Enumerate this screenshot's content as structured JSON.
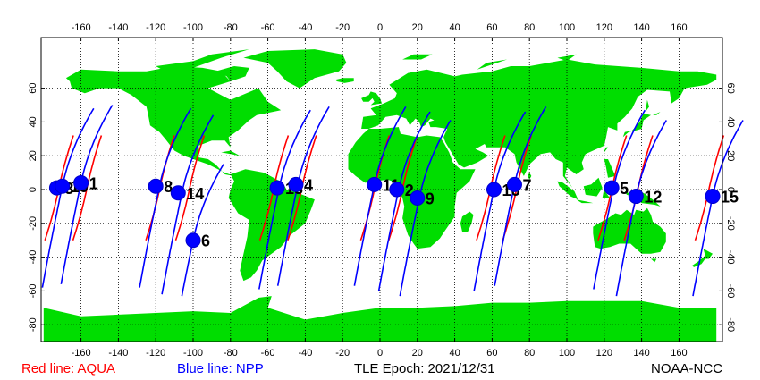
{
  "map": {
    "lon_ticks": [
      -160,
      -140,
      -120,
      -100,
      -80,
      -60,
      -40,
      -20,
      0,
      20,
      40,
      60,
      80,
      100,
      120,
      140,
      160
    ],
    "lat_ticks": [
      60,
      40,
      20,
      0,
      -20,
      -40,
      -60,
      -80
    ],
    "land_color": "#00dd00",
    "ocean_color": "#ffffff",
    "grid_style": "dotted"
  },
  "legend": {
    "aqua_label": "Red line: AQUA",
    "aqua_color": "#ff0000",
    "npp_label": "Blue line: NPP",
    "npp_color": "#0000ff",
    "epoch_label": "TLE Epoch: 2021/12/31",
    "credit": "NOAA-NCC"
  },
  "passes": [
    {
      "label": "3",
      "lon": -173,
      "lat": 1
    },
    {
      "label": "10",
      "lon": -170,
      "lat": 2
    },
    {
      "label": "1",
      "lon": -160,
      "lat": 4
    },
    {
      "label": "8",
      "lon": -120,
      "lat": 2
    },
    {
      "label": "14",
      "lon": -108,
      "lat": -2
    },
    {
      "label": "6",
      "lon": -100,
      "lat": -30
    },
    {
      "label": "13",
      "lon": -55,
      "lat": 1
    },
    {
      "label": "4",
      "lon": -45,
      "lat": 3
    },
    {
      "label": "11",
      "lon": -3,
      "lat": 3
    },
    {
      "label": "2",
      "lon": 9,
      "lat": 0
    },
    {
      "label": "9",
      "lon": 20,
      "lat": -5
    },
    {
      "label": "16",
      "lon": 61,
      "lat": 0
    },
    {
      "label": "7",
      "lon": 72,
      "lat": 3
    },
    {
      "label": "5",
      "lon": 124,
      "lat": 1
    },
    {
      "label": "12",
      "lon": 137,
      "lat": -4
    },
    {
      "label": "15",
      "lon": 178,
      "lat": -4
    }
  ]
}
